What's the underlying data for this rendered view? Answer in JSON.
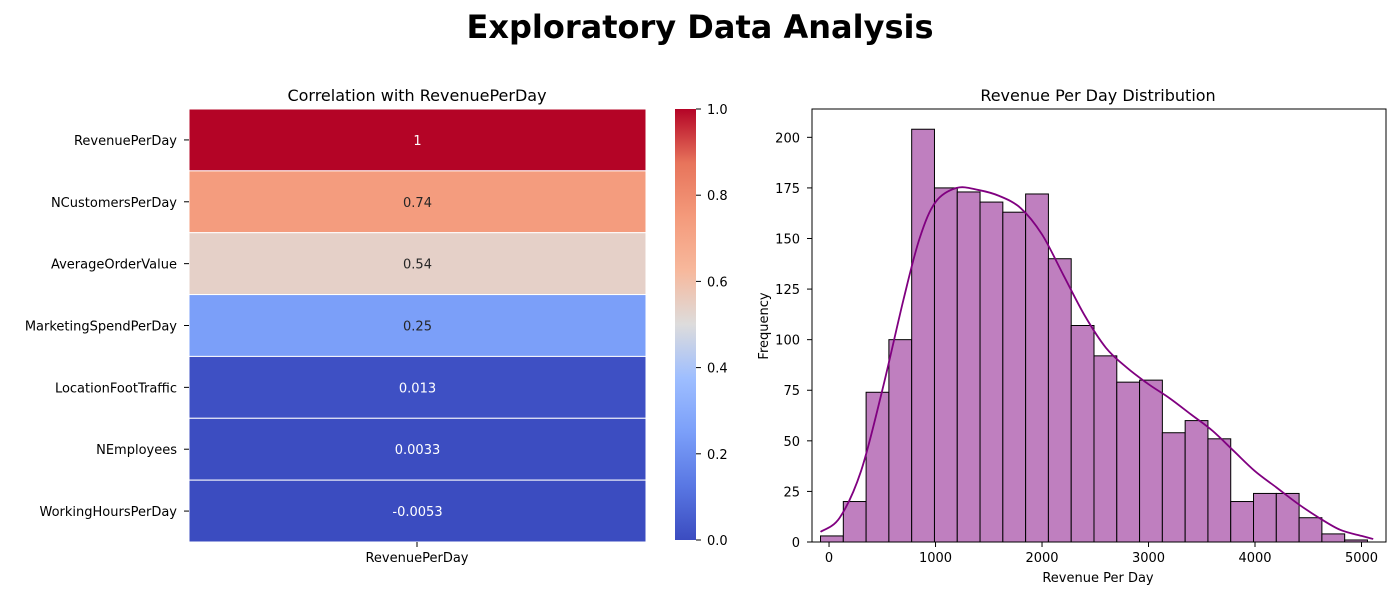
{
  "suptitle": "Exploratory Data Analysis",
  "chart_data": [
    {
      "type": "heatmap",
      "title": "Correlation with RevenuePerDay",
      "xlabel": "",
      "ylabel": "",
      "colormap": "coolwarm",
      "column_labels": [
        "RevenuePerDay"
      ],
      "row_labels": [
        "RevenuePerDay",
        "NCustomersPerDay",
        "AverageOrderValue",
        "MarketingSpendPerDay",
        "LocationFootTraffic",
        "NEmployees",
        "WorkingHoursPerDay"
      ],
      "values": [
        1,
        0.74,
        0.54,
        0.25,
        0.013,
        0.0033,
        -0.0053
      ],
      "annotations": [
        "1",
        "0.74",
        "0.54",
        "0.25",
        "0.013",
        "0.0033",
        "-0.0053"
      ],
      "colorbar": {
        "range": [
          0.0,
          1.0
        ],
        "ticks": [
          "0.0",
          "0.2",
          "0.4",
          "0.6",
          "0.8",
          "1.0"
        ]
      }
    },
    {
      "type": "bar",
      "subtype": "histogram",
      "title": "Revenue Per Day Distribution",
      "xlabel": "Revenue Per Day",
      "ylabel": "Frequency",
      "xlim": [
        -160,
        5230
      ],
      "ylim": [
        0,
        214
      ],
      "xticks": [
        0,
        1000,
        2000,
        3000,
        4000,
        5000
      ],
      "yticks": [
        0,
        25,
        50,
        75,
        100,
        125,
        150,
        175,
        200
      ],
      "bin_edges": [
        -80,
        134,
        348,
        562,
        776,
        990,
        1204,
        1418,
        1632,
        1846,
        2060,
        2274,
        2488,
        2702,
        2916,
        3130,
        3344,
        3558,
        3772,
        3986,
        4200,
        4414,
        4628,
        4842,
        5056
      ],
      "counts": [
        3,
        20,
        74,
        100,
        204,
        175,
        173,
        168,
        163,
        172,
        140,
        107,
        92,
        79,
        80,
        54,
        60,
        51,
        20,
        24,
        24,
        12,
        4,
        1
      ],
      "bar_color": "#bf7fbf",
      "kde": {
        "color": "#800080",
        "x": [
          -80,
          100,
          300,
          500,
          700,
          850,
          1000,
          1200,
          1400,
          1600,
          1800,
          2000,
          2200,
          2400,
          2600,
          2800,
          3000,
          3200,
          3400,
          3600,
          3800,
          4000,
          4200,
          4400,
          4600,
          4800,
          5000,
          5110
        ],
        "y": [
          5,
          12,
          35,
          75,
          120,
          150,
          168,
          175,
          174,
          171,
          165,
          152,
          132,
          112,
          96,
          86,
          78,
          71,
          63,
          55,
          45,
          35,
          27,
          19,
          12,
          6,
          3,
          1.5
        ]
      }
    }
  ]
}
